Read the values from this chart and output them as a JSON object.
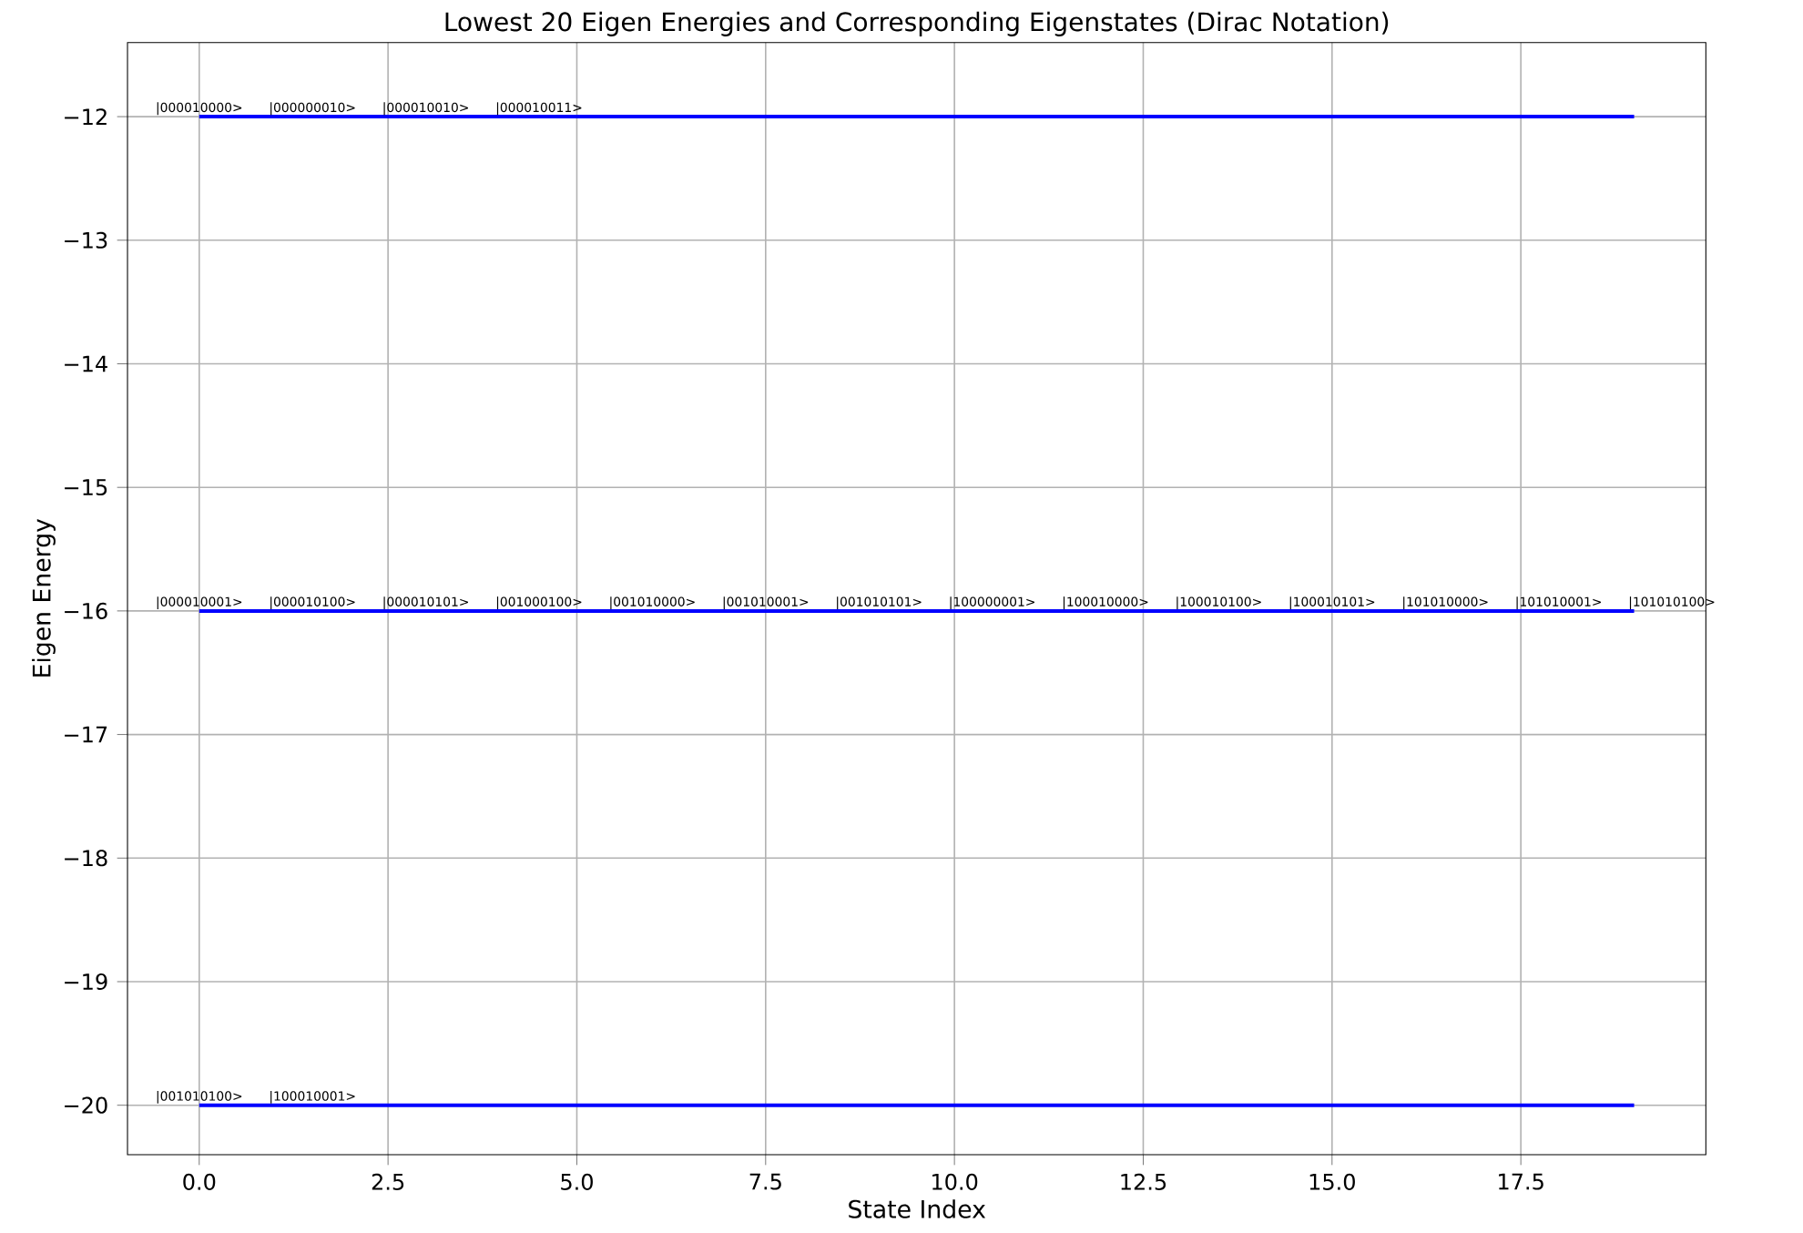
{
  "chart_data": {
    "type": "line",
    "title": "Lowest 20 Eigen Energies and Corresponding Eigenstates (Dirac Notation)",
    "xlabel": "State Index",
    "ylabel": "Eigen Energy",
    "x": [
      0,
      19
    ],
    "series": [
      {
        "color": "#0000ff",
        "values": [
          -12,
          -12
        ]
      },
      {
        "color": "#0000ff",
        "values": [
          -16,
          -16
        ]
      },
      {
        "color": "#0000ff",
        "values": [
          -20,
          -20
        ]
      }
    ],
    "xlim": [
      -0.95,
      19.95
    ],
    "ylim": [
      -20.4,
      -11.4
    ],
    "xticks": [
      {
        "value": 0,
        "label": "0.0"
      },
      {
        "value": 2.5,
        "label": "2.5"
      },
      {
        "value": 5,
        "label": "5.0"
      },
      {
        "value": 7.5,
        "label": "7.5"
      },
      {
        "value": 10,
        "label": "10.0"
      },
      {
        "value": 12.5,
        "label": "12.5"
      },
      {
        "value": 15,
        "label": "15.0"
      },
      {
        "value": 17.5,
        "label": "17.5"
      }
    ],
    "yticks": [
      {
        "value": -20,
        "label": "−20"
      },
      {
        "value": -19,
        "label": "−19"
      },
      {
        "value": -18,
        "label": "−18"
      },
      {
        "value": -17,
        "label": "−17"
      },
      {
        "value": -16,
        "label": "−16"
      },
      {
        "value": -15,
        "label": "−15"
      },
      {
        "value": -14,
        "label": "−14"
      },
      {
        "value": -13,
        "label": "−13"
      },
      {
        "value": -12,
        "label": "−12"
      }
    ],
    "grid": true,
    "marker": "none",
    "line_style": "solid",
    "annotations": [
      {
        "text": "|000010000>",
        "x": 0,
        "y": -12
      },
      {
        "text": "|000000010>",
        "x": 1.5,
        "y": -12
      },
      {
        "text": "|000010010>",
        "x": 3,
        "y": -12
      },
      {
        "text": "|000010011>",
        "x": 4.5,
        "y": -12
      },
      {
        "text": "|000010001>",
        "x": 0,
        "y": -16
      },
      {
        "text": "|000010100>",
        "x": 1.5,
        "y": -16
      },
      {
        "text": "|000010101>",
        "x": 3,
        "y": -16
      },
      {
        "text": "|001000100>",
        "x": 4.5,
        "y": -16
      },
      {
        "text": "|001010000>",
        "x": 6,
        "y": -16
      },
      {
        "text": "|001010001>",
        "x": 7.5,
        "y": -16
      },
      {
        "text": "|001010101>",
        "x": 9,
        "y": -16
      },
      {
        "text": "|100000001>",
        "x": 10.5,
        "y": -16
      },
      {
        "text": "|100010000>",
        "x": 12,
        "y": -16
      },
      {
        "text": "|100010100>",
        "x": 13.5,
        "y": -16
      },
      {
        "text": "|100010101>",
        "x": 15,
        "y": -16
      },
      {
        "text": "|101010000>",
        "x": 16.5,
        "y": -16
      },
      {
        "text": "|101010001>",
        "x": 18,
        "y": -16
      },
      "|101010100>",
      {
        "text": "|001010100>",
        "x": 0,
        "y": -20
      },
      {
        "text": "|100010001>",
        "x": 1.5,
        "y": -20
      }
    ]
  }
}
